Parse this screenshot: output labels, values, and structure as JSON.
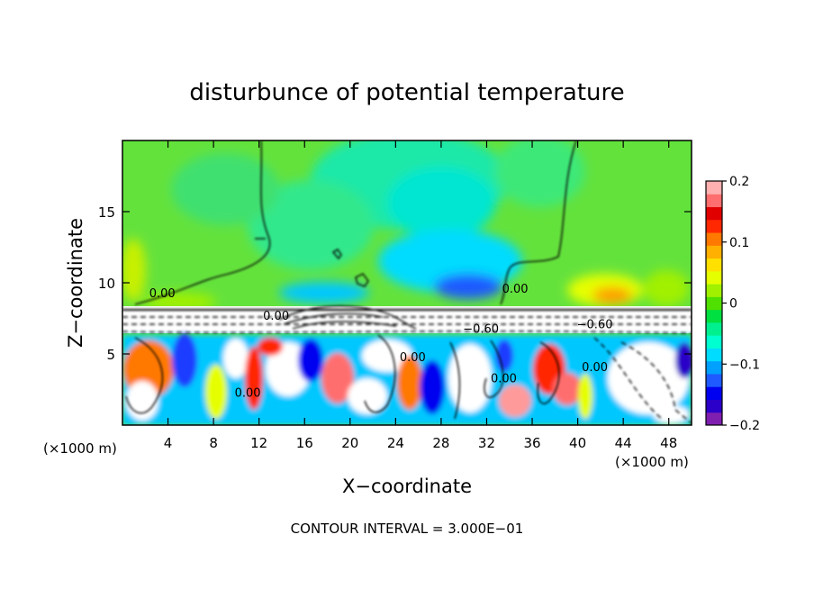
{
  "chart_data": {
    "type": "heatmap",
    "title": "disturbunce of potential temperature",
    "xlabel": "X−coordinate",
    "ylabel": "Z−coordinate",
    "x_unit_left": "(×1000 m)",
    "x_unit_right": "(×1000 m)",
    "xlim": [
      0,
      50
    ],
    "ylim": [
      0,
      20
    ],
    "x_ticks": [
      4,
      8,
      12,
      16,
      20,
      24,
      28,
      32,
      36,
      40,
      44,
      48
    ],
    "y_ticks": [
      5,
      10,
      15
    ],
    "colorbar": {
      "range": [
        -0.2,
        0.2
      ],
      "tick_values": [
        0.2,
        0.1,
        0,
        -0.1,
        -0.2
      ],
      "tick_labels": [
        "0.2",
        "0.1",
        "0",
        "−0.1",
        "−0.2"
      ],
      "colors": [
        "#7f1fb0",
        "#2b00c8",
        "#0000f0",
        "#1e5aff",
        "#00a0ff",
        "#00dcff",
        "#00ffd0",
        "#00f090",
        "#00e040",
        "#50e000",
        "#a0f000",
        "#e6ff00",
        "#ffe000",
        "#ffb000",
        "#ff7800",
        "#ff2800",
        "#e00000",
        "#ff6e6e",
        "#ffb0b0"
      ]
    },
    "contour_labels": [
      {
        "text": "0.00",
        "x": 3.5,
        "z": 9.0
      },
      {
        "text": "0.00",
        "x": 13.5,
        "z": 7.4
      },
      {
        "text": "0.00",
        "x": 34.5,
        "z": 9.3
      },
      {
        "text": "−0.60",
        "x": 31.5,
        "z": 6.5
      },
      {
        "text": "−0.60",
        "x": 41.5,
        "z": 6.8
      },
      {
        "text": "0.00",
        "x": 25.5,
        "z": 4.5
      },
      {
        "text": "0.00",
        "x": 33.5,
        "z": 3.0
      },
      {
        "text": "0.00",
        "x": 41.5,
        "z": 3.8
      },
      {
        "text": "0.00",
        "x": 11.0,
        "z": 2.0
      }
    ],
    "footer": "CONTOUR INTERVAL = 3.000E−01"
  }
}
